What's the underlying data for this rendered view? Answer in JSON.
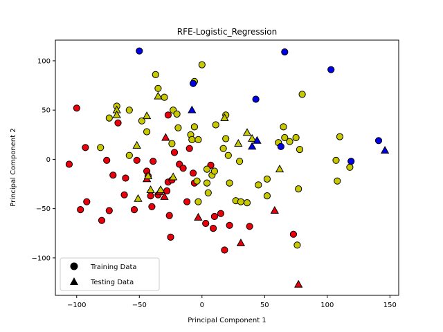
{
  "chart_data": {
    "type": "scatter",
    "title": "RFE-Logistic_Regression",
    "xlabel": "Principal Component 1",
    "ylabel": "Principal Component 2",
    "xlim": [
      -117,
      157
    ],
    "ylim": [
      -138,
      121
    ],
    "xticks": [
      -100,
      -50,
      0,
      50,
      100,
      150
    ],
    "yticks": [
      -100,
      -50,
      0,
      50,
      100
    ],
    "tick_labels_x": [
      "−100",
      "−50",
      "0",
      "50",
      "100",
      "150"
    ],
    "tick_labels_y": [
      "−100",
      "−50",
      "0",
      "50",
      "100"
    ],
    "grid": false,
    "legend_position": "lower-left",
    "colors": {
      "red": "#e8000b",
      "yellow": "#c8c800",
      "blue": "#0000e8",
      "edge": "#000000",
      "legend_marker": "#000000"
    },
    "series": [
      {
        "name": "Training Data",
        "marker": "circle",
        "points": [
          {
            "x": -106,
            "y": -5,
            "c": "red"
          },
          {
            "x": -100,
            "y": 52,
            "c": "red"
          },
          {
            "x": -97,
            "y": -51,
            "c": "red"
          },
          {
            "x": -93,
            "y": 12,
            "c": "red"
          },
          {
            "x": -92,
            "y": -43,
            "c": "red"
          },
          {
            "x": -80,
            "y": -62,
            "c": "red"
          },
          {
            "x": -76,
            "y": -1,
            "c": "red"
          },
          {
            "x": -74,
            "y": -52,
            "c": "red"
          },
          {
            "x": -71,
            "y": -16,
            "c": "red"
          },
          {
            "x": -67,
            "y": 37,
            "c": "red"
          },
          {
            "x": -62,
            "y": -36,
            "c": "red"
          },
          {
            "x": -61,
            "y": -19,
            "c": "red"
          },
          {
            "x": -54,
            "y": -51,
            "c": "red"
          },
          {
            "x": -52,
            "y": -1,
            "c": "red"
          },
          {
            "x": -44,
            "y": -12,
            "c": "red"
          },
          {
            "x": -43,
            "y": -17,
            "c": "red"
          },
          {
            "x": -41,
            "y": -37,
            "c": "red"
          },
          {
            "x": -40,
            "y": -48,
            "c": "red"
          },
          {
            "x": -39,
            "y": -2,
            "c": "red"
          },
          {
            "x": -35,
            "y": -36,
            "c": "red"
          },
          {
            "x": -28,
            "y": -32,
            "c": "red"
          },
          {
            "x": -27,
            "y": -23,
            "c": "red"
          },
          {
            "x": -27,
            "y": 45,
            "c": "red"
          },
          {
            "x": -26,
            "y": -57,
            "c": "red"
          },
          {
            "x": -25,
            "y": -79,
            "c": "red"
          },
          {
            "x": -24,
            "y": -21,
            "c": "red"
          },
          {
            "x": -22,
            "y": 7,
            "c": "red"
          },
          {
            "x": -18,
            "y": -5,
            "c": "red"
          },
          {
            "x": -15,
            "y": -9,
            "c": "red"
          },
          {
            "x": -12,
            "y": -43,
            "c": "red"
          },
          {
            "x": -10,
            "y": 11,
            "c": "red"
          },
          {
            "x": -7,
            "y": -14,
            "c": "red"
          },
          {
            "x": -6,
            "y": -24,
            "c": "red"
          },
          {
            "x": 3,
            "y": -65,
            "c": "red"
          },
          {
            "x": 7,
            "y": -6,
            "c": "red"
          },
          {
            "x": 9,
            "y": -70,
            "c": "red"
          },
          {
            "x": 10,
            "y": -58,
            "c": "red"
          },
          {
            "x": 15,
            "y": -55,
            "c": "red"
          },
          {
            "x": 18,
            "y": -92,
            "c": "red"
          },
          {
            "x": 22,
            "y": -67,
            "c": "red"
          },
          {
            "x": 38,
            "y": -68,
            "c": "red"
          },
          {
            "x": 73,
            "y": -76,
            "c": "red"
          },
          {
            "x": -81,
            "y": 12,
            "c": "yellow"
          },
          {
            "x": -74,
            "y": 42,
            "c": "yellow"
          },
          {
            "x": -68,
            "y": 54,
            "c": "yellow"
          },
          {
            "x": -58,
            "y": 50,
            "c": "yellow"
          },
          {
            "x": -58,
            "y": 4,
            "c": "yellow"
          },
          {
            "x": -48,
            "y": 39,
            "c": "yellow"
          },
          {
            "x": -44,
            "y": 28,
            "c": "yellow"
          },
          {
            "x": -37,
            "y": 86,
            "c": "yellow"
          },
          {
            "x": -35,
            "y": 72,
            "c": "yellow"
          },
          {
            "x": -30,
            "y": 63,
            "c": "yellow"
          },
          {
            "x": -24,
            "y": 16,
            "c": "yellow"
          },
          {
            "x": -23,
            "y": 50,
            "c": "yellow"
          },
          {
            "x": -20,
            "y": 46,
            "c": "yellow"
          },
          {
            "x": -19,
            "y": 32,
            "c": "yellow"
          },
          {
            "x": -9,
            "y": 25,
            "c": "yellow"
          },
          {
            "x": -8,
            "y": 20,
            "c": "yellow"
          },
          {
            "x": -6,
            "y": 79,
            "c": "yellow"
          },
          {
            "x": -6,
            "y": 33,
            "c": "yellow"
          },
          {
            "x": -3,
            "y": 20,
            "c": "yellow"
          },
          {
            "x": -4,
            "y": -22,
            "c": "yellow"
          },
          {
            "x": -3,
            "y": -43,
            "c": "yellow"
          },
          {
            "x": 0,
            "y": 96,
            "c": "yellow"
          },
          {
            "x": 4,
            "y": -24,
            "c": "yellow"
          },
          {
            "x": 4,
            "y": -10,
            "c": "yellow"
          },
          {
            "x": 5,
            "y": -34,
            "c": "yellow"
          },
          {
            "x": 8,
            "y": -16,
            "c": "yellow"
          },
          {
            "x": 10,
            "y": -12,
            "c": "yellow"
          },
          {
            "x": 11,
            "y": 35,
            "c": "yellow"
          },
          {
            "x": 17,
            "y": 11,
            "c": "yellow"
          },
          {
            "x": 19,
            "y": 45,
            "c": "yellow"
          },
          {
            "x": 19,
            "y": 21,
            "c": "yellow"
          },
          {
            "x": 21,
            "y": 4,
            "c": "yellow"
          },
          {
            "x": 22,
            "y": -24,
            "c": "yellow"
          },
          {
            "x": 27,
            "y": -42,
            "c": "yellow"
          },
          {
            "x": 30,
            "y": -2,
            "c": "yellow"
          },
          {
            "x": 31,
            "y": -43,
            "c": "yellow"
          },
          {
            "x": 36,
            "y": -44,
            "c": "yellow"
          },
          {
            "x": 45,
            "y": -26,
            "c": "yellow"
          },
          {
            "x": 52,
            "y": -20,
            "c": "yellow"
          },
          {
            "x": 52,
            "y": -37,
            "c": "yellow"
          },
          {
            "x": 61,
            "y": 17,
            "c": "yellow"
          },
          {
            "x": 65,
            "y": 33,
            "c": "yellow"
          },
          {
            "x": 66,
            "y": 22,
            "c": "yellow"
          },
          {
            "x": 70,
            "y": 18,
            "c": "yellow"
          },
          {
            "x": 75,
            "y": 22,
            "c": "yellow"
          },
          {
            "x": 76,
            "y": -87,
            "c": "yellow"
          },
          {
            "x": 77,
            "y": -30,
            "c": "yellow"
          },
          {
            "x": 78,
            "y": 10,
            "c": "yellow"
          },
          {
            "x": 80,
            "y": 66,
            "c": "yellow"
          },
          {
            "x": 107,
            "y": -1,
            "c": "yellow"
          },
          {
            "x": 108,
            "y": -22,
            "c": "yellow"
          },
          {
            "x": 110,
            "y": 23,
            "c": "yellow"
          },
          {
            "x": 118,
            "y": -8,
            "c": "yellow"
          },
          {
            "x": -50,
            "y": 110,
            "c": "blue"
          },
          {
            "x": -7,
            "y": 77,
            "c": "blue"
          },
          {
            "x": 43,
            "y": 61,
            "c": "blue"
          },
          {
            "x": 63,
            "y": 13,
            "c": "blue"
          },
          {
            "x": 66,
            "y": 109,
            "c": "blue"
          },
          {
            "x": 103,
            "y": 91,
            "c": "blue"
          },
          {
            "x": 119,
            "y": -2,
            "c": "blue"
          },
          {
            "x": 141,
            "y": 19,
            "c": "blue"
          }
        ]
      },
      {
        "name": "Testing Data",
        "marker": "triangle",
        "points": [
          {
            "x": -44,
            "y": -20,
            "c": "red"
          },
          {
            "x": -34,
            "y": -33,
            "c": "red"
          },
          {
            "x": -30,
            "y": -38,
            "c": "red"
          },
          {
            "x": -29,
            "y": 22,
            "c": "red"
          },
          {
            "x": -3,
            "y": -59,
            "c": "red"
          },
          {
            "x": 31,
            "y": -85,
            "c": "red"
          },
          {
            "x": 58,
            "y": -52,
            "c": "red"
          },
          {
            "x": 77,
            "y": -127,
            "c": "red"
          },
          {
            "x": -68,
            "y": 50,
            "c": "yellow"
          },
          {
            "x": -68,
            "y": 45,
            "c": "yellow"
          },
          {
            "x": -52,
            "y": 14,
            "c": "yellow"
          },
          {
            "x": -51,
            "y": -40,
            "c": "yellow"
          },
          {
            "x": -44,
            "y": 44,
            "c": "yellow"
          },
          {
            "x": -43,
            "y": -17,
            "c": "yellow"
          },
          {
            "x": -41,
            "y": -31,
            "c": "yellow"
          },
          {
            "x": -35,
            "y": 64,
            "c": "yellow"
          },
          {
            "x": -33,
            "y": -31,
            "c": "yellow"
          },
          {
            "x": -23,
            "y": -18,
            "c": "yellow"
          },
          {
            "x": 18,
            "y": 42,
            "c": "yellow"
          },
          {
            "x": 29,
            "y": 16,
            "c": "yellow"
          },
          {
            "x": 36,
            "y": 27,
            "c": "yellow"
          },
          {
            "x": 40,
            "y": 21,
            "c": "yellow"
          },
          {
            "x": 62,
            "y": -10,
            "c": "yellow"
          },
          {
            "x": -8,
            "y": 50,
            "c": "blue"
          },
          {
            "x": 40,
            "y": 13,
            "c": "blue"
          },
          {
            "x": 44,
            "y": 19,
            "c": "blue"
          },
          {
            "x": 146,
            "y": 9,
            "c": "blue"
          }
        ]
      }
    ]
  }
}
